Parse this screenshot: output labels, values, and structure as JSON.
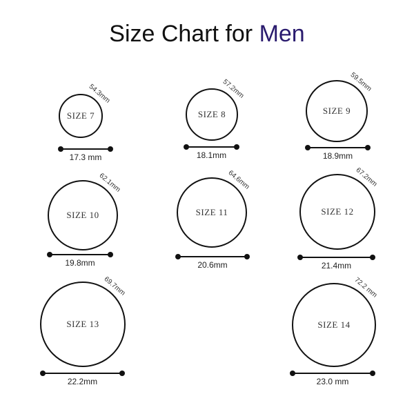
{
  "title": {
    "prefix": "Size Chart for",
    "accent": "Men",
    "accent_color": "#2a1b6e"
  },
  "rings": [
    {
      "size": "SIZE 7",
      "circumference": "54.3mm",
      "diameter": "17.3 mm"
    },
    {
      "size": "SIZE 8",
      "circumference": "57.2mm",
      "diameter": "18.1mm"
    },
    {
      "size": "SIZE 9",
      "circumference": "59.5mm",
      "diameter": "18.9mm"
    },
    {
      "size": "SIZE 10",
      "circumference": "62.1mm",
      "diameter": "19.8mm"
    },
    {
      "size": "SIZE 11",
      "circumference": "64.6mm",
      "diameter": "20.6mm"
    },
    {
      "size": "SIZE 12",
      "circumference": "67.2mm",
      "diameter": "21.4mm"
    },
    {
      "size": "SIZE 13",
      "circumference": "69.7mm",
      "diameter": "22.2mm"
    },
    {
      "size": "SIZE 14",
      "circumference": "72.2 mm",
      "diameter": "23.0 mm"
    }
  ]
}
